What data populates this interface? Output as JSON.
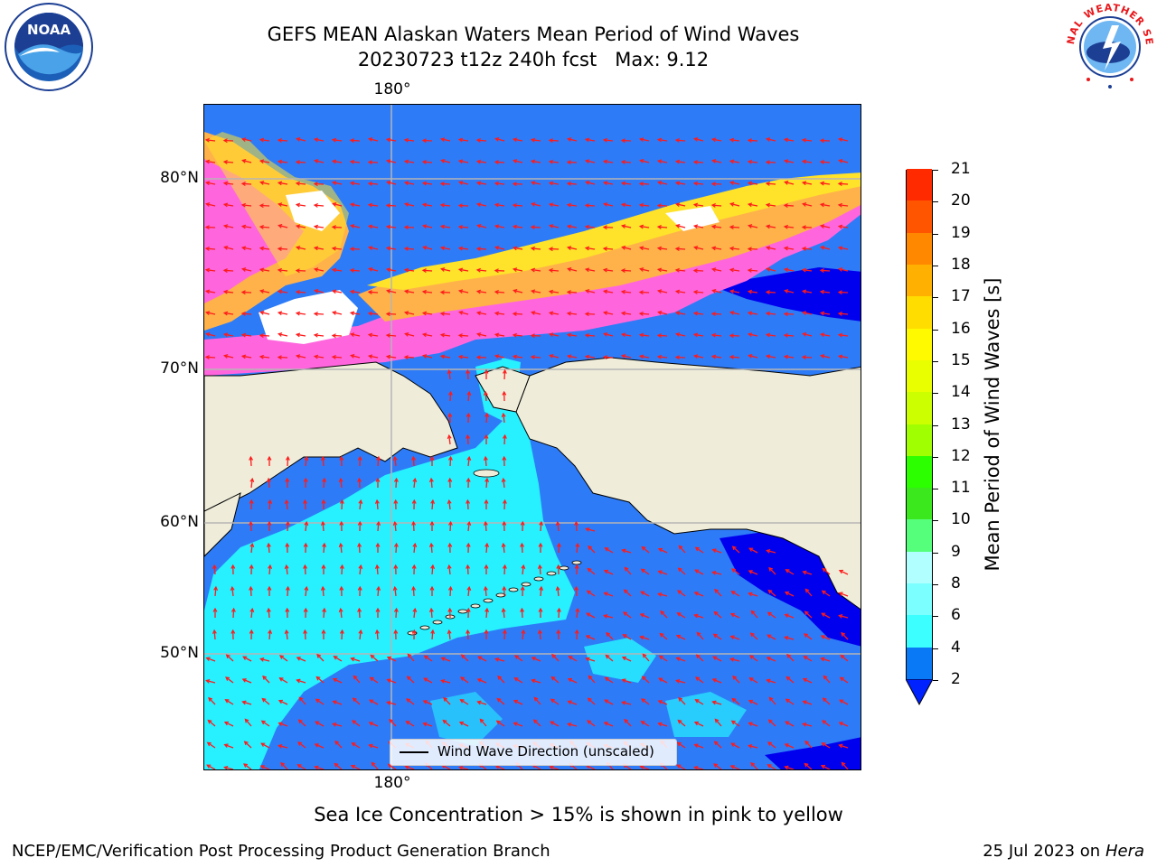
{
  "header": {
    "title_line1": "GEFS MEAN Alaskan Waters Mean Period of Wind Waves",
    "title_line2": "20230723 t12z 240h fcst   Max: 9.12"
  },
  "logos": {
    "left": {
      "name": "NOAA",
      "text": "NOAA",
      "ring_text": "NATIONAL OCEANIC AND ATMOSPHERIC ADMINISTRATION · U.S. DEPARTMENT OF COMMERCE"
    },
    "right": {
      "name": "National Weather Service",
      "ring_text": "NATIONAL WEATHER SERVICE"
    }
  },
  "map": {
    "lat_labels": [
      "80°N",
      "70°N",
      "60°N",
      "50°N"
    ],
    "lon_label_top": "180°",
    "lon_label_bottom": "180°",
    "legend_label": "Wind Wave Direction (unscaled)",
    "colors": {
      "land": "#efedda",
      "ocean_low": "#2e7bf7",
      "ocean_mid": "#27f0ff",
      "ocean_deep": "#0000ee",
      "ice_pink": "#ff66dd",
      "ice_orange": "#ffb24a",
      "ice_yellow": "#ffe22a",
      "arrow": "#ff1a1a"
    }
  },
  "colorbar": {
    "title": "Mean Period of Wind Waves [s]",
    "ticks": [
      "2",
      "4",
      "6",
      "8",
      "9",
      "10",
      "11",
      "12",
      "13",
      "14",
      "15",
      "16",
      "17",
      "18",
      "19",
      "20",
      "21"
    ],
    "colors": [
      "#0a79f5",
      "#00ffff",
      "#3cffff",
      "#7cffff",
      "#b2ffff",
      "#55ff7c",
      "#3be81e",
      "#2cff00",
      "#a0ff00",
      "#ccff00",
      "#e9ff00",
      "#fffa00",
      "#ffdd00",
      "#ffb000",
      "#ff8800",
      "#ff5500",
      "#ff2a00",
      "#ff0000"
    ],
    "extend_color": "#0022ff"
  },
  "note": "Sea Ice Concentration > 15% is shown in pink to yellow",
  "footer": {
    "left": "NCEP/EMC/Verification Post Processing Product Generation Branch",
    "right_date": "25 Jul 2023 on ",
    "right_host": "Hera"
  }
}
